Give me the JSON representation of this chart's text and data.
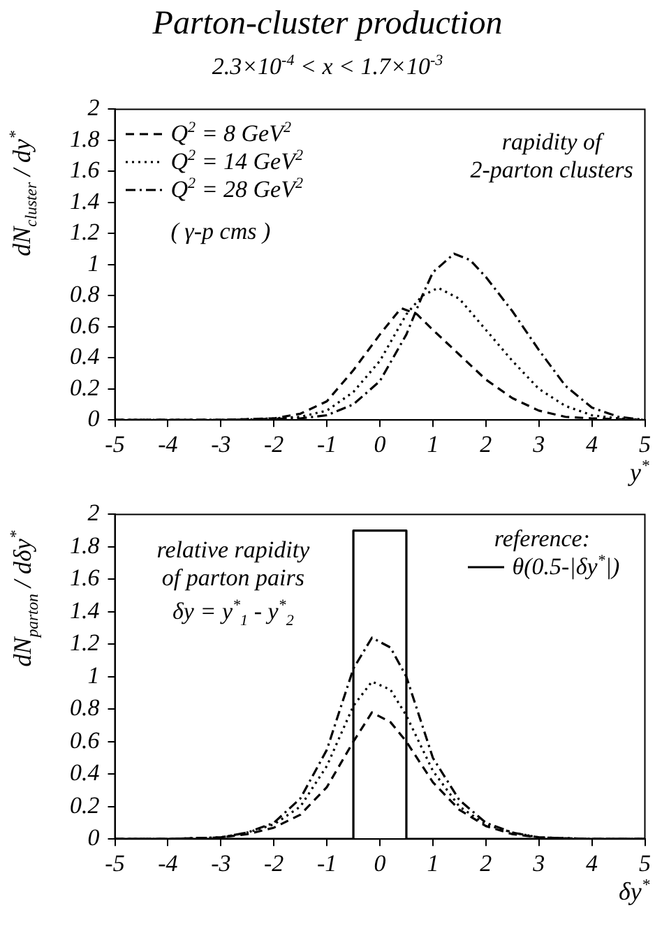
{
  "chart_data": [
    {
      "type": "line",
      "title": "Parton-cluster production",
      "subtitle": "2.3×10$^{-4}$ < x < 1.7×10$^{-3}$",
      "xlabel": "y$^{*}$",
      "ylabel": "dN$_{cluster}$ / dy$^{*}$",
      "legend": "top left",
      "annotations": [
        "rapidity of\n2-parton clusters",
        "( γ-p cms )"
      ],
      "xlim": [
        -5,
        5
      ],
      "xticks": [
        -5,
        -4,
        -3,
        -2,
        -1,
        0,
        1,
        2,
        3,
        4,
        5
      ],
      "ylim": [
        0,
        2
      ],
      "yticks": [
        0,
        0.2,
        0.4,
        0.6,
        0.8,
        1,
        1.2,
        1.4,
        1.6,
        1.8,
        2
      ],
      "series": [
        {
          "name": "Q$^{2}$ =  8 GeV$^{2}$",
          "color": "#000000",
          "line_style": "dashed",
          "x": [
            -5,
            -3,
            -2,
            -1.5,
            -1,
            -0.5,
            0,
            0.4,
            0.7,
            1,
            1.5,
            2,
            2.5,
            3,
            3.5,
            4,
            5
          ],
          "values": [
            0,
            0,
            0.01,
            0.04,
            0.12,
            0.32,
            0.55,
            0.72,
            0.68,
            0.58,
            0.42,
            0.26,
            0.14,
            0.06,
            0.02,
            0.01,
            0
          ]
        },
        {
          "name": "Q$^{2}$ = 14 GeV$^{2}$",
          "color": "#000000",
          "line_style": "dotted",
          "x": [
            -5,
            -3,
            -2,
            -1.5,
            -1,
            -0.5,
            0,
            0.5,
            0.8,
            1.1,
            1.5,
            2,
            2.5,
            3,
            3.5,
            4,
            4.5,
            5
          ],
          "values": [
            0,
            0,
            0.01,
            0.02,
            0.06,
            0.18,
            0.38,
            0.68,
            0.8,
            0.85,
            0.78,
            0.58,
            0.38,
            0.2,
            0.09,
            0.03,
            0.01,
            0
          ]
        },
        {
          "name": "Q$^{2}$ = 28 GeV$^{2}$",
          "color": "#000000",
          "line_style": "dashdot",
          "x": [
            -5,
            -3,
            -1.5,
            -1,
            -0.5,
            0,
            0.5,
            0.8,
            1,
            1.4,
            1.7,
            2,
            2.5,
            3,
            3.5,
            4,
            4.5,
            5
          ],
          "values": [
            0,
            0,
            0.01,
            0.03,
            0.1,
            0.25,
            0.55,
            0.8,
            0.95,
            1.07,
            1.03,
            0.92,
            0.7,
            0.45,
            0.22,
            0.08,
            0.02,
            0
          ]
        }
      ]
    },
    {
      "type": "line",
      "xlabel": "δy$^{*}$",
      "ylabel": "dN$_{parton}$ / dδy$^{*}$",
      "legend": "top right",
      "legend_title": "reference:",
      "annotations": [
        "relative rapidity\nof parton pairs",
        "δy = y$^{*}$$_{1}$ - y$^{*}$$_{2}$"
      ],
      "xlim": [
        -5,
        5
      ],
      "xticks": [
        -5,
        -4,
        -3,
        -2,
        -1,
        0,
        1,
        2,
        3,
        4,
        5
      ],
      "ylim": [
        0,
        2
      ],
      "yticks": [
        0,
        0.2,
        0.4,
        0.6,
        0.8,
        1,
        1.2,
        1.4,
        1.6,
        1.8,
        2
      ],
      "series": [
        {
          "color": "#000000",
          "line_style": "dashed",
          "x": [
            -5,
            -4,
            -3,
            -2.5,
            -2,
            -1.5,
            -1,
            -0.5,
            -0.15,
            0.2,
            0.5,
            1,
            1.5,
            2,
            2.5,
            3,
            4,
            5
          ],
          "values": [
            0,
            0,
            0.01,
            0.03,
            0.07,
            0.15,
            0.32,
            0.6,
            0.78,
            0.72,
            0.6,
            0.35,
            0.18,
            0.08,
            0.03,
            0.01,
            0,
            0
          ]
        },
        {
          "color": "#000000",
          "line_style": "dotted",
          "x": [
            -5,
            -4,
            -3,
            -2.5,
            -2,
            -1.5,
            -1,
            -0.5,
            -0.15,
            0.2,
            0.5,
            1,
            1.5,
            2,
            2.5,
            3,
            4,
            5
          ],
          "values": [
            0,
            0,
            0.01,
            0.04,
            0.09,
            0.2,
            0.45,
            0.82,
            0.97,
            0.92,
            0.76,
            0.42,
            0.2,
            0.09,
            0.04,
            0.01,
            0,
            0
          ]
        },
        {
          "color": "#000000",
          "line_style": "dashdot",
          "x": [
            -5,
            -4,
            -3,
            -2.5,
            -2,
            -1.5,
            -1,
            -0.5,
            -0.15,
            0.2,
            0.5,
            1,
            1.5,
            2,
            2.5,
            3,
            4,
            5
          ],
          "values": [
            0,
            0,
            0.01,
            0.04,
            0.1,
            0.25,
            0.55,
            1.05,
            1.24,
            1.18,
            1,
            0.5,
            0.24,
            0.1,
            0.04,
            0.01,
            0,
            0
          ]
        },
        {
          "name": "θ(0.5-|δy$^{*}$|)",
          "color": "#000000",
          "line_style": "solid",
          "x": [
            -5,
            -0.5,
            -0.5,
            0.5,
            0.5,
            5
          ],
          "values": [
            0,
            0,
            1.9,
            1.9,
            0,
            0
          ]
        }
      ]
    }
  ]
}
